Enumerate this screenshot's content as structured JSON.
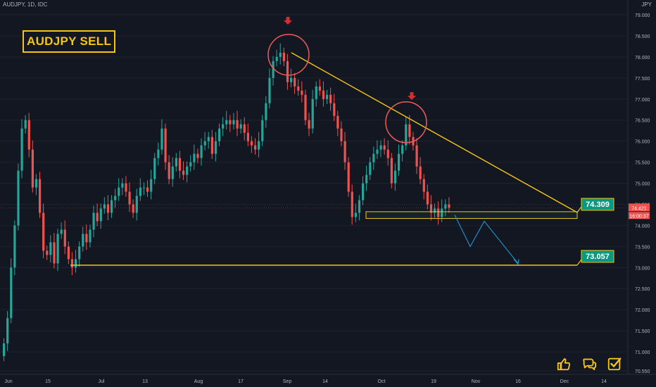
{
  "header": {
    "symbol": "AUDJPY, 1D, IDC",
    "currency": "JPY"
  },
  "title_badge": "AUDJPY SELL",
  "icons": [
    "thumbs-up-icon",
    "chat-icon",
    "checkbox-icon"
  ],
  "colors": {
    "bull": "#26a69a",
    "bear": "#ef5350",
    "accent": "#f5c518",
    "circle": "#f05a5a",
    "projection": "#1a9bd7",
    "background": "#131722"
  },
  "chart_data": {
    "type": "candlestick",
    "ylim": [
      70.5,
      79.0
    ],
    "y_ticks": [
      "70.550",
      "71.000",
      "71.500",
      "72.000",
      "72.500",
      "73.000",
      "73.500",
      "74.000",
      "74.500",
      "75.000",
      "75.500",
      "76.000",
      "76.500",
      "77.000",
      "77.500",
      "78.000",
      "78.500",
      "79.000"
    ],
    "x_ticks": [
      "Jun",
      "15",
      "Jul",
      "13",
      "Aug",
      "17",
      "Sep",
      "14",
      "Oct",
      "19",
      "Nov",
      "16",
      "Dec",
      "14"
    ],
    "candles_close": [
      71.2,
      71.8,
      73.0,
      74.0,
      75.3,
      76.3,
      76.5,
      75.8,
      74.9,
      75.1,
      74.3,
      73.4,
      73.3,
      73.6,
      73.1,
      73.8,
      73.9,
      73.5,
      73.2,
      73.0,
      73.2,
      73.5,
      73.8,
      73.6,
      73.9,
      74.3,
      74.1,
      74.4,
      74.5,
      74.3,
      74.6,
      74.7,
      74.9,
      75.0,
      74.8,
      74.5,
      74.3,
      74.7,
      74.9,
      74.9,
      74.8,
      75.1,
      75.6,
      75.8,
      76.3,
      75.5,
      75.1,
      75.4,
      75.6,
      75.3,
      75.2,
      75.4,
      75.5,
      75.7,
      75.6,
      75.9,
      76.0,
      76.1,
      75.7,
      76.0,
      76.3,
      76.4,
      76.5,
      76.4,
      76.5,
      76.3,
      76.4,
      76.2,
      76.0,
      75.9,
      75.8,
      76.0,
      76.5,
      76.9,
      77.5,
      77.9,
      78.0,
      78.1,
      77.9,
      77.4,
      77.5,
      77.3,
      77.2,
      77.1,
      76.5,
      76.3,
      77.0,
      77.3,
      77.2,
      77.0,
      77.1,
      76.9,
      76.6,
      76.3,
      76.0,
      75.5,
      74.8,
      74.2,
      74.3,
      74.6,
      75.0,
      75.2,
      75.5,
      75.7,
      75.8,
      75.9,
      75.8,
      75.6,
      75.0,
      75.3,
      75.7,
      75.9,
      76.4,
      76.1,
      75.9,
      75.4,
      75.1,
      74.8,
      74.5,
      74.3,
      74.4,
      74.2,
      74.4,
      74.5,
      74.42
    ],
    "labels": [
      "74.309",
      "73.057"
    ],
    "annotations": {
      "resistance_to": 74.309,
      "target": 73.057,
      "support_low": 73.057
    },
    "price_tag": "74.421",
    "countdown": "16:00:37"
  }
}
